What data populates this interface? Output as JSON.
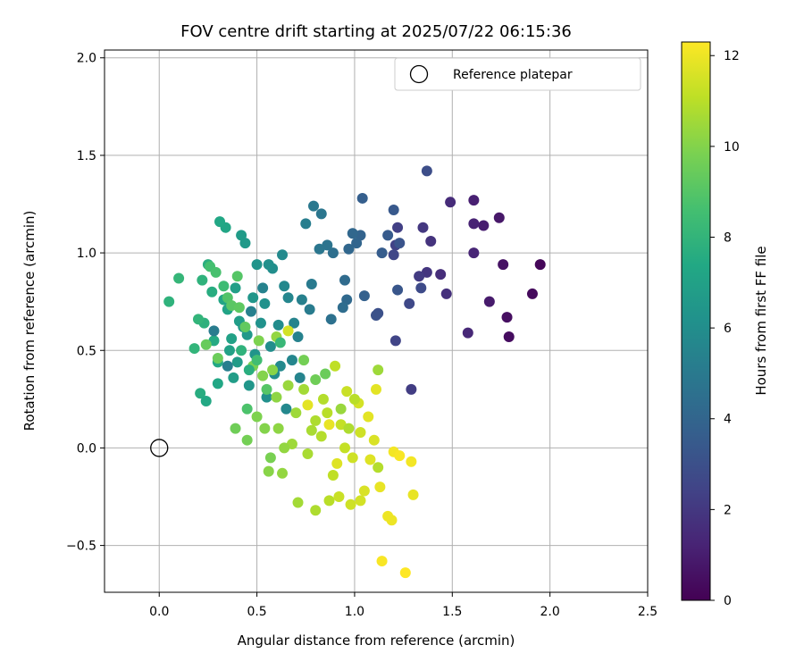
{
  "chart_data": {
    "type": "scatter",
    "title": "FOV centre drift starting at 2025/07/22 06:15:36",
    "xlabel": "Angular distance from reference (arcmin)",
    "ylabel": "Rotation from reference (arcmin)",
    "xlim": [
      -0.28,
      2.5
    ],
    "ylim": [
      -0.74,
      2.04
    ],
    "xticks": [
      0.0,
      0.5,
      1.0,
      1.5,
      2.0,
      2.5
    ],
    "xtick_labels": [
      "0.0",
      "0.5",
      "1.0",
      "1.5",
      "2.0",
      "2.5"
    ],
    "yticks": [
      -0.5,
      0.0,
      0.5,
      1.0,
      1.5,
      2.0
    ],
    "ytick_labels": [
      "−0.5",
      "0.0",
      "0.5",
      "1.0",
      "1.5",
      "2.0"
    ],
    "grid": true,
    "legend": {
      "position": "upper-right",
      "entries": [
        "Reference platepar"
      ]
    },
    "reference_point": {
      "x": 0.0,
      "y": 0.0,
      "marker": "open-circle",
      "color": "#000000"
    },
    "colorbar": {
      "label": "Hours from first FF file",
      "colormap": "viridis",
      "range": [
        0,
        12.3
      ],
      "ticks": [
        0,
        2,
        4,
        6,
        8,
        10,
        12
      ],
      "tick_labels": [
        "0",
        "2",
        "4",
        "6",
        "8",
        "10",
        "12"
      ]
    },
    "points": [
      {
        "x": 1.95,
        "y": 0.94,
        "c": 0.2
      },
      {
        "x": 1.91,
        "y": 0.79,
        "c": 0.3
      },
      {
        "x": 1.79,
        "y": 0.57,
        "c": 0.4
      },
      {
        "x": 1.78,
        "y": 0.67,
        "c": 0.5
      },
      {
        "x": 1.76,
        "y": 0.94,
        "c": 0.6
      },
      {
        "x": 1.74,
        "y": 1.18,
        "c": 0.8
      },
      {
        "x": 1.69,
        "y": 0.75,
        "c": 0.9
      },
      {
        "x": 1.66,
        "y": 1.14,
        "c": 1.0
      },
      {
        "x": 1.61,
        "y": 1.27,
        "c": 1.1
      },
      {
        "x": 1.61,
        "y": 1.15,
        "c": 1.2
      },
      {
        "x": 1.61,
        "y": 1.0,
        "c": 1.3
      },
      {
        "x": 1.58,
        "y": 0.59,
        "c": 1.4
      },
      {
        "x": 1.49,
        "y": 1.26,
        "c": 1.5
      },
      {
        "x": 1.44,
        "y": 0.89,
        "c": 1.6
      },
      {
        "x": 1.47,
        "y": 0.79,
        "c": 1.7
      },
      {
        "x": 1.39,
        "y": 1.06,
        "c": 1.8
      },
      {
        "x": 1.37,
        "y": 0.9,
        "c": 1.9
      },
      {
        "x": 1.35,
        "y": 1.13,
        "c": 2.0
      },
      {
        "x": 1.33,
        "y": 0.88,
        "c": 2.1
      },
      {
        "x": 1.29,
        "y": 0.3,
        "c": 2.2
      },
      {
        "x": 1.22,
        "y": 1.13,
        "c": 2.3
      },
      {
        "x": 1.21,
        "y": 1.04,
        "c": 2.4
      },
      {
        "x": 1.21,
        "y": 0.55,
        "c": 2.5
      },
      {
        "x": 1.2,
        "y": 0.99,
        "c": 2.6
      },
      {
        "x": 1.28,
        "y": 0.74,
        "c": 2.7
      },
      {
        "x": 1.34,
        "y": 0.82,
        "c": 2.8
      },
      {
        "x": 1.37,
        "y": 1.42,
        "c": 2.9
      },
      {
        "x": 1.12,
        "y": 0.69,
        "c": 3.0
      },
      {
        "x": 1.11,
        "y": 0.68,
        "c": 3.1
      },
      {
        "x": 1.23,
        "y": 1.05,
        "c": 3.2
      },
      {
        "x": 1.22,
        "y": 0.81,
        "c": 3.3
      },
      {
        "x": 1.2,
        "y": 1.22,
        "c": 3.4
      },
      {
        "x": 1.17,
        "y": 1.09,
        "c": 3.5
      },
      {
        "x": 1.14,
        "y": 1.0,
        "c": 3.6
      },
      {
        "x": 1.04,
        "y": 1.28,
        "c": 3.7
      },
      {
        "x": 1.05,
        "y": 0.78,
        "c": 3.8
      },
      {
        "x": 1.03,
        "y": 1.09,
        "c": 3.9
      },
      {
        "x": 1.01,
        "y": 1.05,
        "c": 4.0
      },
      {
        "x": 0.99,
        "y": 1.1,
        "c": 4.1
      },
      {
        "x": 0.97,
        "y": 1.02,
        "c": 4.1
      },
      {
        "x": 0.96,
        "y": 0.76,
        "c": 4.2
      },
      {
        "x": 0.95,
        "y": 0.86,
        "c": 4.3
      },
      {
        "x": 0.94,
        "y": 0.72,
        "c": 4.4
      },
      {
        "x": 0.89,
        "y": 1.0,
        "c": 4.5
      },
      {
        "x": 0.88,
        "y": 0.66,
        "c": 4.6
      },
      {
        "x": 0.86,
        "y": 1.04,
        "c": 4.7
      },
      {
        "x": 0.83,
        "y": 1.2,
        "c": 4.8
      },
      {
        "x": 0.82,
        "y": 1.02,
        "c": 4.8
      },
      {
        "x": 0.79,
        "y": 1.24,
        "c": 4.9
      },
      {
        "x": 0.78,
        "y": 0.84,
        "c": 5.0
      },
      {
        "x": 0.77,
        "y": 0.71,
        "c": 5.1
      },
      {
        "x": 0.75,
        "y": 1.15,
        "c": 5.2
      },
      {
        "x": 0.73,
        "y": 0.76,
        "c": 5.3
      },
      {
        "x": 0.71,
        "y": 0.57,
        "c": 5.4
      },
      {
        "x": 0.69,
        "y": 0.64,
        "c": 5.5
      },
      {
        "x": 0.66,
        "y": 0.77,
        "c": 5.6
      },
      {
        "x": 0.64,
        "y": 0.83,
        "c": 5.7
      },
      {
        "x": 0.63,
        "y": 0.99,
        "c": 5.8
      },
      {
        "x": 0.61,
        "y": 0.63,
        "c": 5.9
      },
      {
        "x": 0.58,
        "y": 0.92,
        "c": 6.0
      },
      {
        "x": 0.56,
        "y": 0.94,
        "c": 6.1
      },
      {
        "x": 0.54,
        "y": 0.74,
        "c": 6.2
      },
      {
        "x": 0.5,
        "y": 0.94,
        "c": 6.3
      },
      {
        "x": 0.48,
        "y": 0.77,
        "c": 6.4
      },
      {
        "x": 0.45,
        "y": 0.58,
        "c": 6.5
      },
      {
        "x": 0.44,
        "y": 1.05,
        "c": 6.6
      },
      {
        "x": 0.42,
        "y": 1.09,
        "c": 6.7
      },
      {
        "x": 0.41,
        "y": 0.65,
        "c": 6.8
      },
      {
        "x": 0.39,
        "y": 0.82,
        "c": 6.9
      },
      {
        "x": 0.37,
        "y": 0.56,
        "c": 7.0
      },
      {
        "x": 0.35,
        "y": 0.71,
        "c": 7.1
      },
      {
        "x": 0.34,
        "y": 1.13,
        "c": 7.2
      },
      {
        "x": 0.31,
        "y": 1.16,
        "c": 7.3
      },
      {
        "x": 0.3,
        "y": 0.44,
        "c": 7.4
      },
      {
        "x": 0.28,
        "y": 0.55,
        "c": 7.5
      },
      {
        "x": 0.27,
        "y": 0.8,
        "c": 7.6
      },
      {
        "x": 0.25,
        "y": 0.94,
        "c": 7.7
      },
      {
        "x": 0.23,
        "y": 0.64,
        "c": 7.8
      },
      {
        "x": 0.22,
        "y": 0.86,
        "c": 7.9
      },
      {
        "x": 0.2,
        "y": 0.66,
        "c": 8.0
      },
      {
        "x": 0.18,
        "y": 0.51,
        "c": 8.0
      },
      {
        "x": 0.1,
        "y": 0.87,
        "c": 8.1
      },
      {
        "x": 0.05,
        "y": 0.75,
        "c": 7.9
      },
      {
        "x": 0.21,
        "y": 0.28,
        "c": 7.6
      },
      {
        "x": 0.24,
        "y": 0.24,
        "c": 7.4
      },
      {
        "x": 0.3,
        "y": 0.33,
        "c": 7.3
      },
      {
        "x": 0.33,
        "y": 0.76,
        "c": 7.2
      },
      {
        "x": 0.36,
        "y": 0.5,
        "c": 7.0
      },
      {
        "x": 0.38,
        "y": 0.36,
        "c": 6.8
      },
      {
        "x": 0.4,
        "y": 0.44,
        "c": 6.7
      },
      {
        "x": 0.43,
        "y": 0.62,
        "c": 6.6
      },
      {
        "x": 0.46,
        "y": 0.32,
        "c": 6.4
      },
      {
        "x": 0.49,
        "y": 0.48,
        "c": 6.3
      },
      {
        "x": 0.52,
        "y": 0.64,
        "c": 6.2
      },
      {
        "x": 0.55,
        "y": 0.26,
        "c": 6.1
      },
      {
        "x": 0.57,
        "y": 0.52,
        "c": 6.0
      },
      {
        "x": 0.59,
        "y": 0.38,
        "c": 5.9
      },
      {
        "x": 0.62,
        "y": 0.42,
        "c": 5.8
      },
      {
        "x": 0.65,
        "y": 0.2,
        "c": 5.7
      },
      {
        "x": 0.68,
        "y": 0.45,
        "c": 5.6
      },
      {
        "x": 0.72,
        "y": 0.36,
        "c": 5.5
      },
      {
        "x": 0.53,
        "y": 0.82,
        "c": 5.4
      },
      {
        "x": 0.47,
        "y": 0.7,
        "c": 5.3
      },
      {
        "x": 0.35,
        "y": 0.42,
        "c": 5.2
      },
      {
        "x": 0.28,
        "y": 0.6,
        "c": 5.1
      },
      {
        "x": 0.33,
        "y": 0.83,
        "c": 8.4
      },
      {
        "x": 0.26,
        "y": 0.93,
        "c": 8.6
      },
      {
        "x": 0.29,
        "y": 0.9,
        "c": 8.7
      },
      {
        "x": 0.35,
        "y": 0.77,
        "c": 8.9
      },
      {
        "x": 0.4,
        "y": 0.88,
        "c": 9.0
      },
      {
        "x": 0.37,
        "y": 0.73,
        "c": 9.1
      },
      {
        "x": 0.41,
        "y": 0.72,
        "c": 9.2
      },
      {
        "x": 0.44,
        "y": 0.62,
        "c": 9.3
      },
      {
        "x": 0.24,
        "y": 0.53,
        "c": 9.4
      },
      {
        "x": 0.3,
        "y": 0.46,
        "c": 9.5
      },
      {
        "x": 0.39,
        "y": 0.1,
        "c": 9.6
      },
      {
        "x": 0.45,
        "y": 0.04,
        "c": 9.7
      },
      {
        "x": 0.48,
        "y": 0.42,
        "c": 9.8
      },
      {
        "x": 0.5,
        "y": 0.16,
        "c": 9.9
      },
      {
        "x": 0.53,
        "y": 0.37,
        "c": 10.0
      },
      {
        "x": 0.56,
        "y": -0.12,
        "c": 10.1
      },
      {
        "x": 0.6,
        "y": 0.26,
        "c": 10.2
      },
      {
        "x": 0.63,
        "y": -0.13,
        "c": 10.3
      },
      {
        "x": 0.66,
        "y": 0.32,
        "c": 10.4
      },
      {
        "x": 0.7,
        "y": 0.18,
        "c": 10.5
      },
      {
        "x": 0.74,
        "y": 0.3,
        "c": 10.6
      },
      {
        "x": 0.78,
        "y": 0.09,
        "c": 10.7
      },
      {
        "x": 0.8,
        "y": -0.32,
        "c": 10.8
      },
      {
        "x": 0.84,
        "y": 0.25,
        "c": 10.9
      },
      {
        "x": 0.87,
        "y": -0.27,
        "c": 11.0
      },
      {
        "x": 0.9,
        "y": 0.42,
        "c": 11.1
      },
      {
        "x": 0.93,
        "y": 0.12,
        "c": 11.2
      },
      {
        "x": 0.96,
        "y": 0.29,
        "c": 11.3
      },
      {
        "x": 0.99,
        "y": -0.05,
        "c": 11.4
      },
      {
        "x": 1.02,
        "y": 0.23,
        "c": 11.5
      },
      {
        "x": 1.05,
        "y": -0.22,
        "c": 11.6
      },
      {
        "x": 1.08,
        "y": -0.06,
        "c": 11.7
      },
      {
        "x": 1.11,
        "y": 0.3,
        "c": 11.8
      },
      {
        "x": 1.13,
        "y": -0.2,
        "c": 11.9
      },
      {
        "x": 1.17,
        "y": -0.35,
        "c": 12.0
      },
      {
        "x": 1.2,
        "y": -0.02,
        "c": 12.1
      },
      {
        "x": 1.23,
        "y": -0.04,
        "c": 12.2
      },
      {
        "x": 1.26,
        "y": -0.64,
        "c": 12.3
      },
      {
        "x": 1.14,
        "y": -0.58,
        "c": 12.2
      },
      {
        "x": 1.3,
        "y": -0.24,
        "c": 11.9
      },
      {
        "x": 1.29,
        "y": -0.07,
        "c": 12.1
      },
      {
        "x": 1.19,
        "y": -0.37,
        "c": 12.0
      },
      {
        "x": 1.07,
        "y": 0.16,
        "c": 11.8
      },
      {
        "x": 1.1,
        "y": 0.04,
        "c": 11.6
      },
      {
        "x": 1.03,
        "y": -0.27,
        "c": 11.5
      },
      {
        "x": 0.98,
        "y": -0.29,
        "c": 11.4
      },
      {
        "x": 0.92,
        "y": -0.25,
        "c": 11.3
      },
      {
        "x": 0.95,
        "y": 0.0,
        "c": 11.2
      },
      {
        "x": 0.89,
        "y": -0.14,
        "c": 11.1
      },
      {
        "x": 0.86,
        "y": 0.18,
        "c": 11.0
      },
      {
        "x": 0.83,
        "y": 0.06,
        "c": 10.9
      },
      {
        "x": 0.8,
        "y": 0.14,
        "c": 10.8
      },
      {
        "x": 0.76,
        "y": -0.03,
        "c": 10.7
      },
      {
        "x": 0.71,
        "y": -0.28,
        "c": 10.6
      },
      {
        "x": 0.68,
        "y": 0.02,
        "c": 10.5
      },
      {
        "x": 0.64,
        "y": 0.0,
        "c": 10.3
      },
      {
        "x": 0.61,
        "y": 0.1,
        "c": 10.2
      },
      {
        "x": 0.58,
        "y": 0.4,
        "c": 10.1
      },
      {
        "x": 0.54,
        "y": 0.1,
        "c": 10.0
      },
      {
        "x": 0.51,
        "y": 0.55,
        "c": 9.9
      },
      {
        "x": 0.57,
        "y": -0.05,
        "c": 9.8
      },
      {
        "x": 0.74,
        "y": 0.45,
        "c": 9.7
      },
      {
        "x": 0.8,
        "y": 0.35,
        "c": 9.6
      },
      {
        "x": 0.85,
        "y": 0.38,
        "c": 9.5
      },
      {
        "x": 0.93,
        "y": 0.2,
        "c": 10.4
      },
      {
        "x": 0.97,
        "y": 0.1,
        "c": 10.8
      },
      {
        "x": 1.0,
        "y": 0.25,
        "c": 11.0
      },
      {
        "x": 1.12,
        "y": 0.4,
        "c": 10.5
      },
      {
        "x": 1.12,
        "y": -0.1,
        "c": 10.9
      },
      {
        "x": 1.03,
        "y": 0.08,
        "c": 11.4
      },
      {
        "x": 0.91,
        "y": -0.08,
        "c": 11.7
      },
      {
        "x": 0.87,
        "y": 0.12,
        "c": 11.9
      },
      {
        "x": 0.76,
        "y": 0.22,
        "c": 11.8
      },
      {
        "x": 0.66,
        "y": 0.6,
        "c": 11.5
      },
      {
        "x": 0.6,
        "y": 0.57,
        "c": 10.3
      },
      {
        "x": 0.55,
        "y": 0.3,
        "c": 9.0
      },
      {
        "x": 0.45,
        "y": 0.2,
        "c": 8.8
      },
      {
        "x": 0.5,
        "y": 0.45,
        "c": 8.5
      },
      {
        "x": 0.62,
        "y": 0.54,
        "c": 8.2
      },
      {
        "x": 0.42,
        "y": 0.5,
        "c": 7.9
      },
      {
        "x": 0.46,
        "y": 0.4,
        "c": 7.7
      }
    ]
  }
}
